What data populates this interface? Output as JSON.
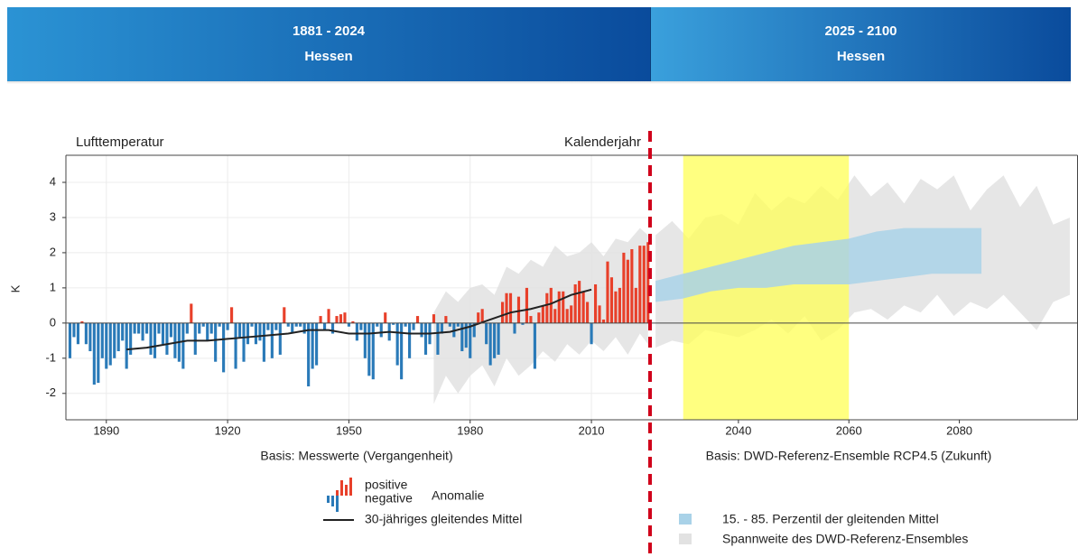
{
  "header": {
    "tabs": [
      {
        "period": "1881 - 2024",
        "region": "Hessen"
      },
      {
        "period": "2025 - 2100",
        "region": "Hessen"
      }
    ]
  },
  "chart_data": [
    {
      "type": "bar",
      "title": "Lufttemperatur",
      "xlabel": "Kalenderjahr",
      "ylabel": "K",
      "subtitle": "Basis: Messwerte (Vergangenheit)",
      "xlim": [
        1880,
        2024.5
      ],
      "ylim": [
        -2.75,
        4.77
      ],
      "xticks": [
        1890,
        1920,
        1950,
        1980,
        2010
      ],
      "yticks": [
        -2,
        -1,
        0,
        1,
        2,
        3,
        4
      ],
      "grid": true,
      "series": [
        {
          "type": "band",
          "color": "#e2e2e2",
          "x": [
            1971,
            1974,
            1977,
            1980,
            1983,
            1986,
            1989,
            1992,
            1995,
            1998,
            2001,
            2004,
            2007,
            2010,
            2013,
            2016,
            2019,
            2022,
            2024
          ],
          "low": [
            -2.3,
            -1.5,
            -2.0,
            -1.5,
            -1.2,
            -1.8,
            -1.0,
            -1.5,
            -1.2,
            -0.8,
            -1.1,
            -0.6,
            -0.9,
            -0.5,
            -0.8,
            -0.4,
            -0.9,
            -0.3,
            -0.6
          ],
          "high": [
            0.3,
            0.9,
            0.6,
            1.0,
            1.1,
            0.8,
            1.6,
            1.4,
            1.8,
            1.6,
            2.2,
            1.9,
            2.0,
            2.3,
            1.9,
            2.4,
            2.3,
            2.7,
            2.5
          ]
        },
        {
          "type": "bar",
          "name": "Anomalie",
          "positive_label": "positive",
          "negative_label": "negative",
          "positive_color": "#e8402a",
          "negative_color": "#2a7ab8",
          "x": [
            1881,
            1882,
            1883,
            1884,
            1885,
            1886,
            1887,
            1888,
            1889,
            1890,
            1891,
            1892,
            1893,
            1894,
            1895,
            1896,
            1897,
            1898,
            1899,
            1900,
            1901,
            1902,
            1903,
            1904,
            1905,
            1906,
            1907,
            1908,
            1909,
            1910,
            1911,
            1912,
            1913,
            1914,
            1915,
            1916,
            1917,
            1918,
            1919,
            1920,
            1921,
            1922,
            1923,
            1924,
            1925,
            1926,
            1927,
            1928,
            1929,
            1930,
            1931,
            1932,
            1933,
            1934,
            1935,
            1936,
            1937,
            1938,
            1939,
            1940,
            1941,
            1942,
            1943,
            1944,
            1945,
            1946,
            1947,
            1948,
            1949,
            1950,
            1951,
            1952,
            1953,
            1954,
            1955,
            1956,
            1957,
            1958,
            1959,
            1960,
            1961,
            1962,
            1963,
            1964,
            1965,
            1966,
            1967,
            1968,
            1969,
            1970,
            1971,
            1972,
            1973,
            1974,
            1975,
            1976,
            1977,
            1978,
            1979,
            1980,
            1981,
            1982,
            1983,
            1984,
            1985,
            1986,
            1987,
            1988,
            1989,
            1990,
            1991,
            1992,
            1993,
            1994,
            1995,
            1996,
            1997,
            1998,
            1999,
            2000,
            2001,
            2002,
            2003,
            2004,
            2005,
            2006,
            2007,
            2008,
            2009,
            2010,
            2011,
            2012,
            2013,
            2014,
            2015,
            2016,
            2017,
            2018,
            2019,
            2020,
            2021,
            2022,
            2023,
            2024
          ],
          "values": [
            -1.0,
            -0.4,
            -0.6,
            0.05,
            -0.6,
            -0.8,
            -1.75,
            -1.7,
            -1.0,
            -1.3,
            -1.2,
            -1.0,
            -0.8,
            -0.5,
            -1.3,
            -0.9,
            -0.3,
            -0.3,
            -0.5,
            -0.3,
            -0.9,
            -1.0,
            -0.3,
            -0.6,
            -0.9,
            -0.4,
            -1.0,
            -1.1,
            -1.3,
            -0.3,
            0.55,
            -0.9,
            -0.3,
            -0.1,
            -0.5,
            -0.3,
            -1.1,
            -0.1,
            -1.4,
            -0.2,
            0.45,
            -1.3,
            -0.4,
            -1.1,
            -0.6,
            -0.1,
            -0.6,
            -0.5,
            -1.1,
            -0.2,
            -1.0,
            -0.2,
            -0.9,
            0.45,
            -0.1,
            -0.3,
            -0.1,
            -0.1,
            -0.3,
            -1.8,
            -1.3,
            -1.2,
            0.2,
            -0.2,
            0.4,
            -0.3,
            0.2,
            0.25,
            0.3,
            -0.1,
            0.05,
            -0.5,
            -0.2,
            -1.0,
            -1.5,
            -1.6,
            -0.1,
            -0.4,
            0.3,
            -0.5,
            -0.05,
            -1.2,
            -1.6,
            -0.1,
            -1.0,
            -0.2,
            0.2,
            -0.4,
            -0.9,
            -0.6,
            0.25,
            -0.9,
            -0.3,
            0.2,
            -0.1,
            -0.4,
            -0.1,
            -0.8,
            -0.7,
            -1.0,
            -0.4,
            0.3,
            0.4,
            -0.6,
            -1.2,
            -1.0,
            -0.9,
            0.6,
            0.85,
            0.85,
            -0.3,
            0.75,
            -0.05,
            1.0,
            0.2,
            -1.3,
            0.3,
            0.5,
            0.85,
            1.0,
            0.4,
            0.9,
            0.9,
            0.4,
            0.5,
            1.1,
            1.2,
            0.9,
            0.6,
            -0.6,
            1.1,
            0.5,
            0.1,
            1.75,
            1.3,
            0.9,
            1.0,
            2.0,
            1.8,
            2.1,
            1.0,
            2.2,
            2.2,
            2.3
          ]
        },
        {
          "type": "line",
          "name": "30-jähriges gleitendes Mittel",
          "color": "#222222",
          "x": [
            1895,
            1900,
            1905,
            1910,
            1915,
            1920,
            1925,
            1930,
            1935,
            1940,
            1945,
            1950,
            1955,
            1960,
            1965,
            1970,
            1975,
            1980,
            1985,
            1990,
            1995,
            2000,
            2005,
            2010
          ],
          "values": [
            -0.75,
            -0.7,
            -0.6,
            -0.5,
            -0.5,
            -0.45,
            -0.4,
            -0.35,
            -0.3,
            -0.2,
            -0.2,
            -0.3,
            -0.3,
            -0.25,
            -0.3,
            -0.3,
            -0.25,
            -0.1,
            0.1,
            0.3,
            0.4,
            0.55,
            0.8,
            0.95
          ]
        }
      ]
    },
    {
      "type": "area",
      "subtitle": "Basis: DWD-Referenz-Ensemble RCP4.5 (Zukunft)",
      "xlim": [
        2024,
        2101.4
      ],
      "ylim": [
        -2.75,
        4.77
      ],
      "xticks": [
        2040,
        2060,
        2080
      ],
      "grid": false,
      "highlight": {
        "xlim": [
          2030,
          2060
        ],
        "color": "#ffff55"
      },
      "series": [
        {
          "type": "band",
          "name": "Spannweite des DWD-Referenz-Ensembles",
          "color": "#e2e2e2",
          "x": [
            2025,
            2028,
            2031,
            2034,
            2037,
            2040,
            2043,
            2046,
            2049,
            2052,
            2055,
            2058,
            2061,
            2064,
            2067,
            2070,
            2073,
            2076,
            2079,
            2082,
            2085,
            2088,
            2091,
            2094,
            2097,
            2100
          ],
          "low": [
            -0.7,
            -0.5,
            -0.6,
            -0.2,
            -0.3,
            -0.4,
            -0.2,
            0.1,
            -0.3,
            0.2,
            -0.5,
            -0.2,
            0.3,
            0.4,
            0.1,
            0.5,
            0.3,
            0.8,
            0.2,
            0.6,
            0.4,
            0.8,
            0.3,
            -0.2,
            0.6,
            0.8
          ],
          "high": [
            2.5,
            2.9,
            2.4,
            3.0,
            3.1,
            2.8,
            3.7,
            3.2,
            3.6,
            3.4,
            3.9,
            3.5,
            4.2,
            3.6,
            4.0,
            3.4,
            4.1,
            3.8,
            4.2,
            3.2,
            3.8,
            4.2,
            3.3,
            3.9,
            2.8,
            3.0
          ]
        },
        {
          "type": "band",
          "name": "15. - 85. Perzentil der gleitenden Mittel",
          "color": "#a9d2e8",
          "x": [
            2025,
            2030,
            2035,
            2040,
            2045,
            2050,
            2055,
            2060,
            2065,
            2070,
            2075,
            2080,
            2084
          ],
          "low": [
            0.6,
            0.7,
            0.9,
            1.0,
            1.0,
            1.1,
            1.1,
            1.1,
            1.2,
            1.3,
            1.4,
            1.4,
            1.4
          ],
          "high": [
            1.2,
            1.4,
            1.6,
            1.8,
            2.0,
            2.2,
            2.3,
            2.4,
            2.6,
            2.7,
            2.7,
            2.7,
            2.7
          ]
        }
      ]
    }
  ]
}
